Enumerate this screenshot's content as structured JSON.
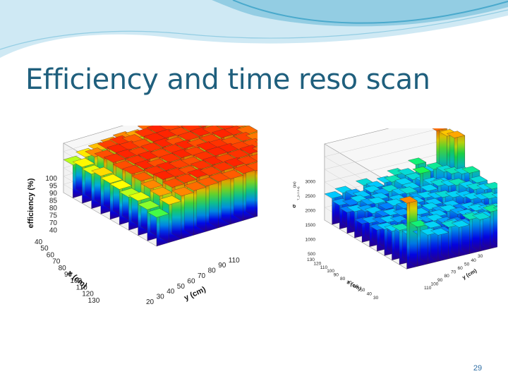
{
  "slide": {
    "title": "Efficiency and time reso scan",
    "page_number": "29",
    "title_color": "#1f5f7d",
    "page_number_color": "#2e6da4",
    "banner_colors": [
      "#cfe9f4",
      "#93cde3",
      "#49a9cc"
    ]
  },
  "chart_data": [
    {
      "type": "lego3d",
      "zlabel": "efficiency (%)",
      "xlabel": "x (cm)",
      "ylabel": "y (cm)",
      "x_ticks": [
        "40",
        "50",
        "60",
        "70",
        "80",
        "90",
        "100",
        "110",
        "120",
        "130"
      ],
      "y_ticks": [
        "20",
        "30",
        "40",
        "50",
        "60",
        "70",
        "80",
        "90",
        "110"
      ],
      "z_ticks": [
        "100",
        "95",
        "90",
        "85",
        "80",
        "75",
        "70",
        "40"
      ],
      "zlim": [
        40,
        100
      ],
      "grid": [
        [
          80,
          85,
          88,
          90,
          92,
          90,
          94,
          95,
          96,
          95,
          96,
          97
        ],
        [
          84,
          92,
          97,
          98,
          95,
          98,
          99,
          97,
          96,
          98,
          99,
          96
        ],
        [
          82,
          96,
          99,
          98,
          96,
          99,
          99,
          97,
          98,
          99,
          97,
          94
        ],
        [
          86,
          98,
          99,
          97,
          98,
          99,
          96,
          98,
          99,
          97,
          98,
          95
        ],
        [
          84,
          96,
          98,
          99,
          97,
          98,
          99,
          96,
          97,
          99,
          98,
          94
        ],
        [
          83,
          97,
          99,
          96,
          98,
          99,
          97,
          99,
          98,
          96,
          97,
          93
        ],
        [
          80,
          95,
          98,
          99,
          97,
          96,
          98,
          99,
          99,
          97,
          96,
          92
        ],
        [
          82,
          92,
          99,
          98,
          96,
          98,
          99,
          97,
          98,
          99,
          95,
          90
        ],
        [
          78,
          90,
          96,
          97,
          99,
          97,
          98,
          99,
          97,
          96,
          94,
          91
        ],
        [
          75,
          86,
          92,
          94,
          95,
          96,
          95,
          97,
          96,
          95,
          93,
          88
        ]
      ]
    },
    {
      "type": "lego3d",
      "zlabel": "σ",
      "zlabel_sub": "T_{1.2.3.4}",
      "zunit": "(ps)",
      "xlabel": "x (cm)",
      "ylabel": "y (cm)",
      "x_ticks": [
        "130",
        "120",
        "110",
        "100",
        "90",
        "80",
        "70",
        "60",
        "50",
        "40",
        "30"
      ],
      "y_ticks": [
        "110",
        "100",
        "90",
        "80",
        "70",
        "60",
        "50",
        "40",
        "30"
      ],
      "z_ticks": [
        "500",
        "1000",
        "1500",
        "2000",
        "2500",
        "3000"
      ],
      "zlim": [
        500,
        3400
      ],
      "grid": [
        [
          1500,
          1600,
          1400,
          1700,
          1500,
          1600,
          1800,
          1700,
          2000,
          1600,
          3100,
          2800
        ],
        [
          1400,
          1300,
          1500,
          1600,
          1400,
          1800,
          1600,
          1700,
          1500,
          1900,
          1700,
          2900
        ],
        [
          1300,
          1600,
          1400,
          1500,
          1700,
          1500,
          1600,
          2100,
          1600,
          1500,
          1800,
          1700
        ],
        [
          1500,
          1400,
          1600,
          1300,
          1500,
          1700,
          1400,
          1600,
          1700,
          1600,
          1500,
          1900
        ],
        [
          1200,
          1500,
          1300,
          1600,
          1400,
          1500,
          1600,
          1500,
          1400,
          1800,
          1600,
          1700
        ],
        [
          1400,
          1300,
          1500,
          1400,
          1600,
          1300,
          1500,
          1700,
          1600,
          1500,
          1700,
          1600
        ],
        [
          1300,
          1500,
          1400,
          1200,
          1500,
          1600,
          1400,
          1500,
          1300,
          1600,
          1500,
          1800
        ],
        [
          1500,
          1200,
          1300,
          1500,
          1400,
          1500,
          1600,
          1400,
          1500,
          1400,
          1700,
          1600
        ],
        [
          1600,
          1400,
          1500,
          1300,
          1600,
          1400,
          1300,
          1500,
          1600,
          1500,
          1400,
          1700
        ],
        [
          1800,
          1500,
          1400,
          1600,
          1300,
          1500,
          1400,
          1600,
          1500,
          1700,
          1600,
          1900
        ],
        [
          3000,
          2000,
          1600,
          1500,
          1700,
          1600,
          1800,
          1700,
          1900,
          1800,
          2000,
          2200
        ]
      ]
    }
  ]
}
